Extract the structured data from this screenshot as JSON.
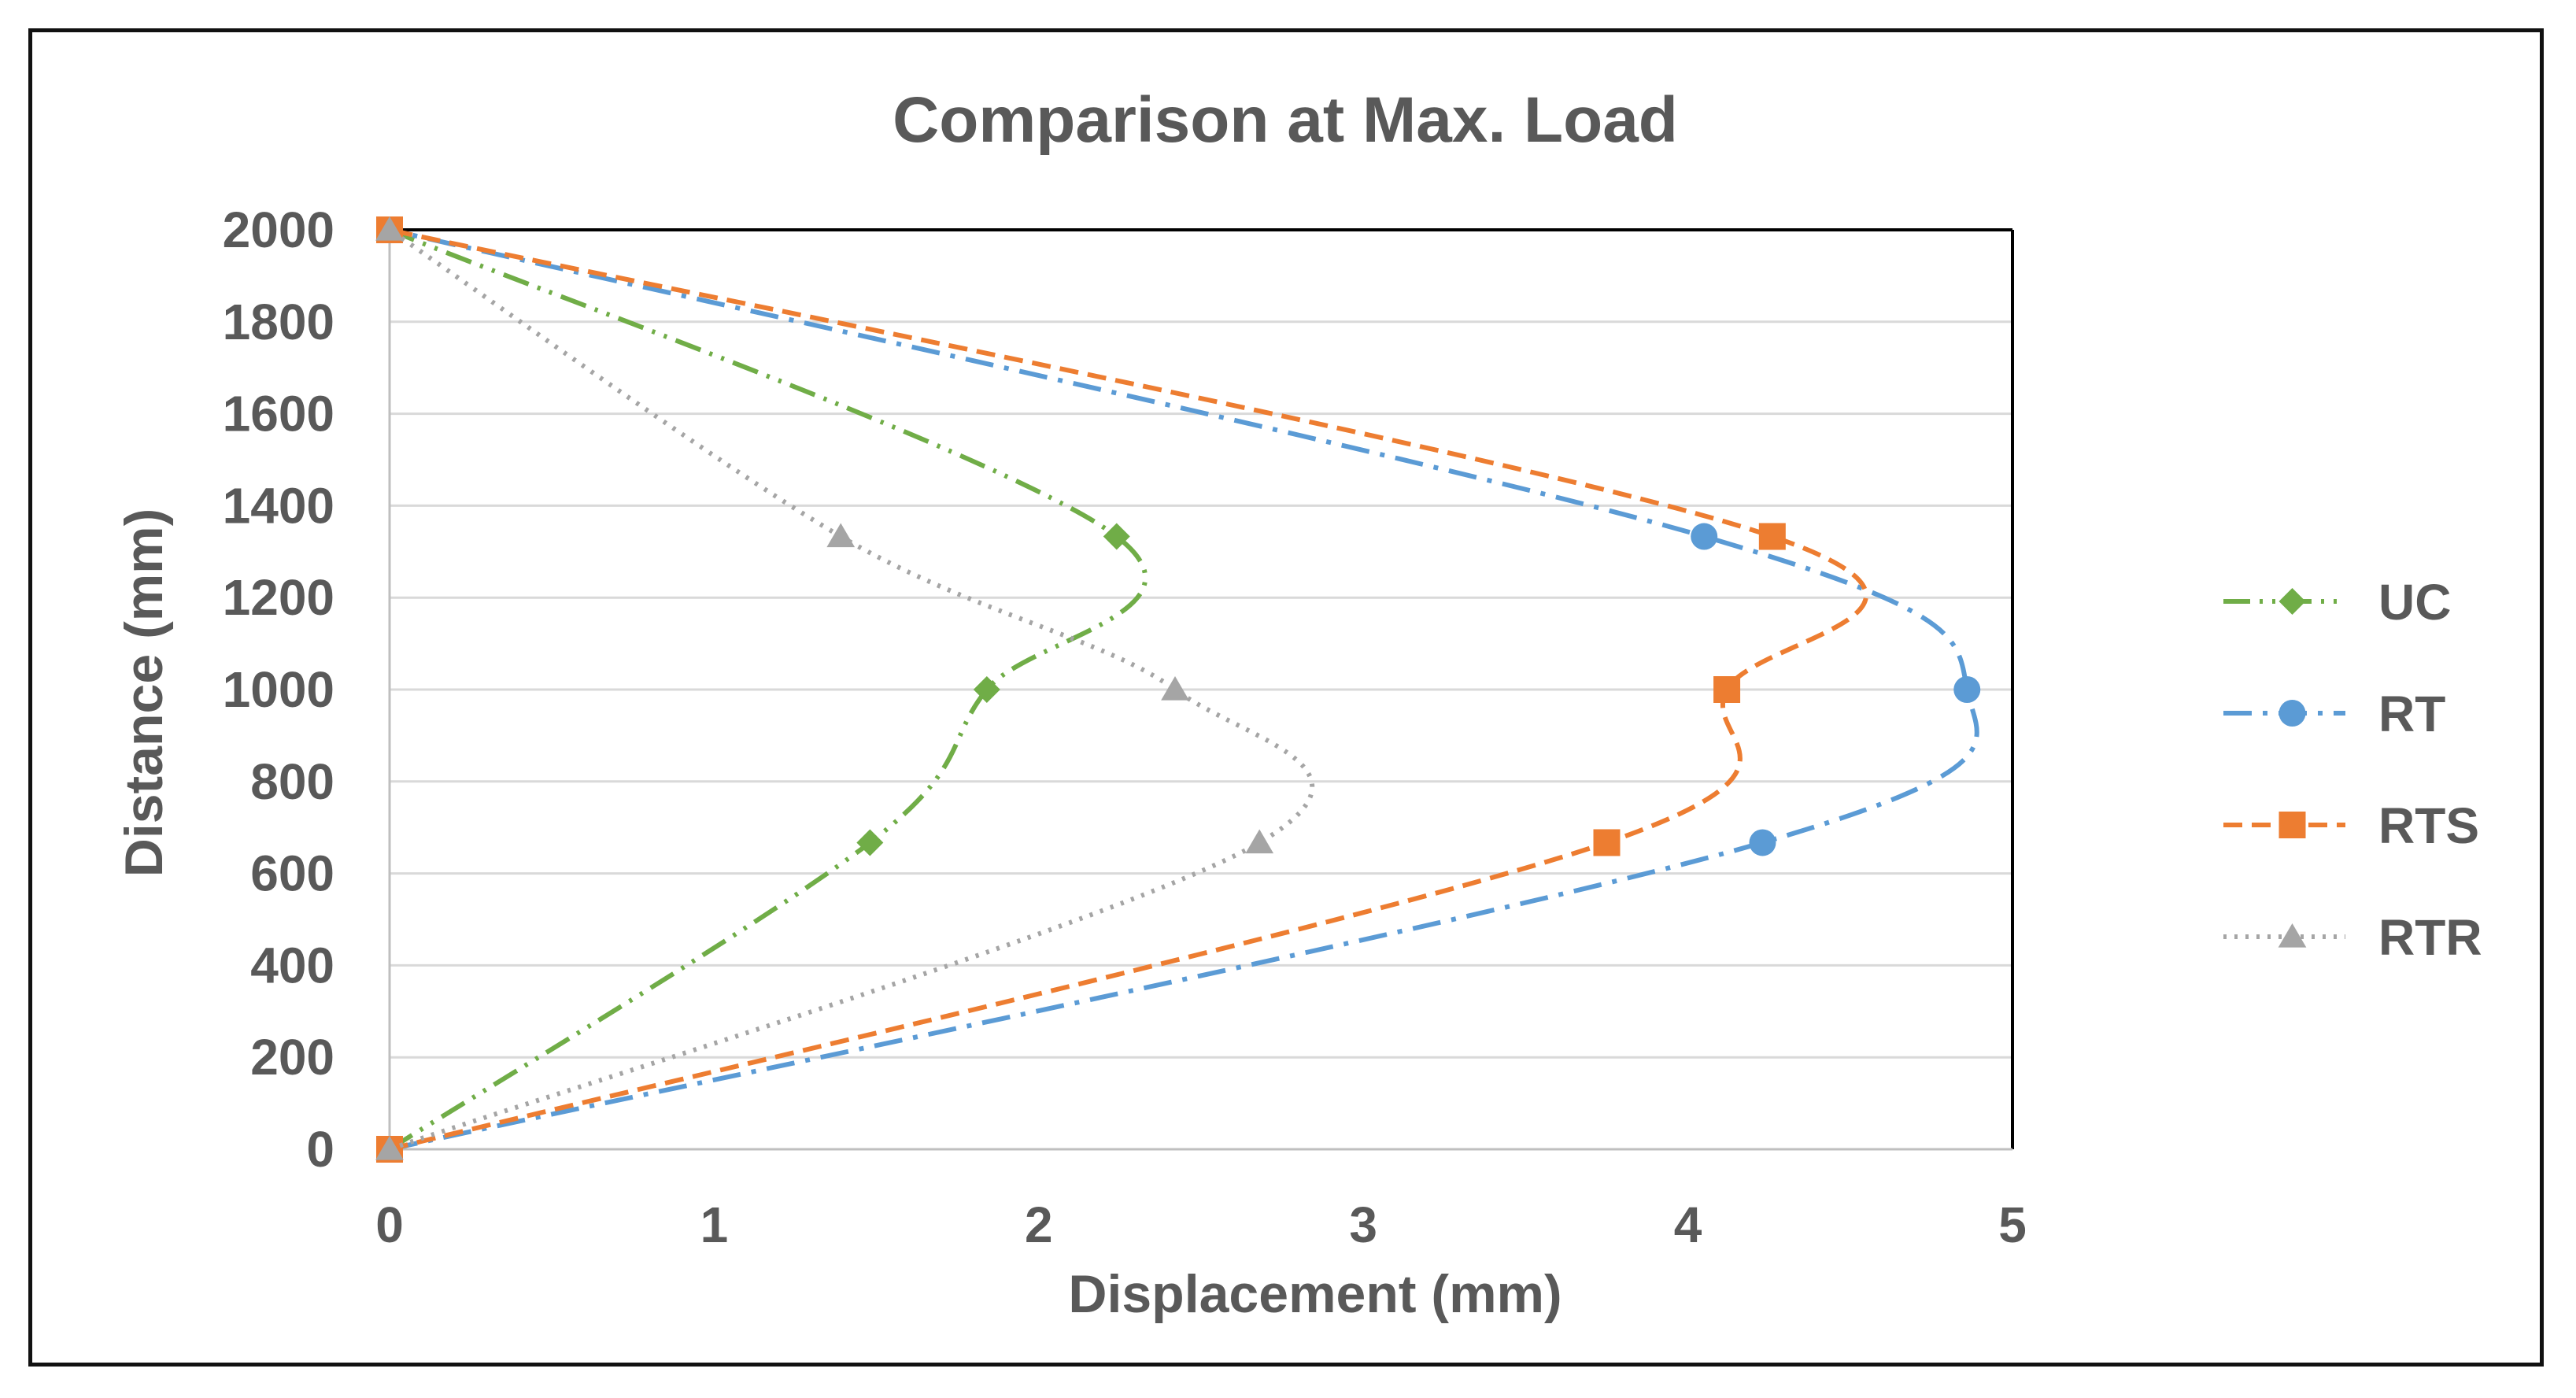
{
  "chart_data": {
    "type": "line",
    "title": "Comparison at Max. Load",
    "xlabel": "Displacement (mm)",
    "ylabel": "Distance (mm)",
    "xlim": [
      0,
      5
    ],
    "ylim": [
      0,
      2000
    ],
    "xticks": [
      "0",
      "1",
      "2",
      "3",
      "4",
      "5"
    ],
    "yticks": [
      "0",
      "200",
      "400",
      "600",
      "800",
      "1000",
      "1200",
      "1400",
      "1600",
      "1800",
      "2000"
    ],
    "grid": "horizontal",
    "legend_position": "right",
    "series": [
      {
        "name": "UC",
        "color": "#70AD47",
        "dash": "dash-dot-dot",
        "marker": "diamond",
        "points": [
          [
            0,
            0
          ],
          [
            1.48,
            667
          ],
          [
            1.84,
            1000
          ],
          [
            2.24,
            1333
          ],
          [
            0,
            2000
          ]
        ]
      },
      {
        "name": "RT",
        "color": "#5B9BD5",
        "dash": "dash-dot",
        "marker": "circle",
        "points": [
          [
            0,
            0
          ],
          [
            4.23,
            667
          ],
          [
            4.86,
            1000
          ],
          [
            4.05,
            1333
          ],
          [
            0,
            2000
          ]
        ]
      },
      {
        "name": "RTS",
        "color": "#ED7D31",
        "dash": "dash",
        "marker": "square",
        "points": [
          [
            0,
            0
          ],
          [
            3.75,
            667
          ],
          [
            4.12,
            1000
          ],
          [
            4.26,
            1333
          ],
          [
            0,
            2000
          ]
        ]
      },
      {
        "name": "RTR",
        "color": "#A5A5A5",
        "dash": "dot",
        "marker": "triangle",
        "points": [
          [
            0,
            0
          ],
          [
            2.68,
            667
          ],
          [
            2.42,
            1000
          ],
          [
            1.39,
            1333
          ],
          [
            0,
            2000
          ]
        ]
      }
    ]
  }
}
